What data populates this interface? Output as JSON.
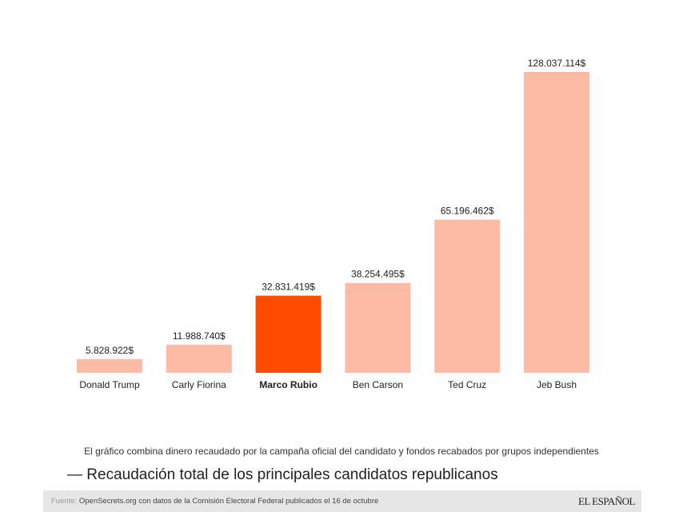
{
  "chart_data": {
    "type": "bar",
    "categories": [
      "Donald Trump",
      "Carly Fiorina",
      "Marco Rubio",
      "Ben Carson",
      "Ted Cruz",
      "Jeb Bush"
    ],
    "values": [
      5828922,
      11988740,
      32831419,
      38254495,
      65196462,
      128037114
    ],
    "data_labels": [
      "5.828.922$",
      "11.988.740$",
      "32.831.419$",
      "38.254.495$",
      "65.196.462$",
      "128.037.114$"
    ],
    "highlight": "Marco Rubio",
    "colors": {
      "default": "#fdbba6",
      "highlight": "#ff4b00"
    },
    "ylim": [
      0,
      128037114
    ],
    "grid": false,
    "title": "— Recaudación total de los principales candidatos republicanos",
    "subtitle": "El gráfico combina dinero recaudado por la campaña oficial del candidato y fondos recabados por grupos independientes"
  },
  "footer": {
    "source_label": "Fuente:",
    "source_text": " OpenSecrets.org con datos de la Comisión Electoral Federal publicados el 16 de octubre",
    "logo": "EL ESPAÑOL"
  }
}
